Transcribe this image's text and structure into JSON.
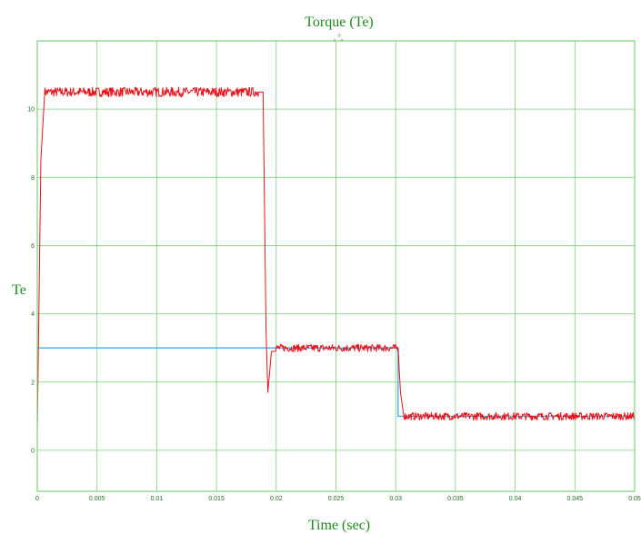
{
  "chart_data": {
    "type": "line",
    "title": "Torque (Te)",
    "subtitle": ", °,",
    "xlabel": "Time (sec)",
    "ylabel": "Te",
    "xlim": [
      0,
      0.05
    ],
    "ylim": [
      -1.2,
      12
    ],
    "x_ticks": [
      0,
      0.005,
      0.01,
      0.015,
      0.02,
      0.025,
      0.03,
      0.035,
      0.04,
      0.045,
      0.05
    ],
    "x_tick_labels": [
      "0",
      "0.005",
      "0.01",
      "0.015",
      "0.02",
      "0.025",
      "0.03",
      "0.035",
      "0.04",
      "0.045",
      "0.05"
    ],
    "y_ticks": [
      0,
      2,
      4,
      6,
      8,
      10
    ],
    "y_tick_labels": [
      "0",
      "2",
      "4",
      "6",
      "8",
      "10"
    ],
    "grid": true,
    "colors": {
      "grid": "#7fd07f",
      "text": "#1f8a1f",
      "measured": "#e8141c",
      "reference": "#54b8ee"
    },
    "series": [
      {
        "name": "",
        "role": "reference",
        "color": "#54b8ee",
        "x": [
          0,
          0.01935,
          0.01935,
          0.0302,
          0.0302,
          0.05
        ],
        "y": [
          3,
          3,
          3,
          3,
          1,
          1
        ]
      },
      {
        "name": "",
        "role": "measured",
        "color": "#e8141c",
        "x": [
          0,
          0.0003,
          0.0006,
          0.0185,
          0.0189,
          0.01915,
          0.0193,
          0.0196,
          0.0199,
          0.0302,
          0.0304,
          0.0307,
          0.05
        ],
        "y": [
          0.5,
          8.5,
          10.5,
          10.5,
          10.5,
          3.5,
          1.7,
          2.9,
          3.0,
          3.0,
          1.7,
          1.0,
          1.0
        ]
      }
    ]
  }
}
